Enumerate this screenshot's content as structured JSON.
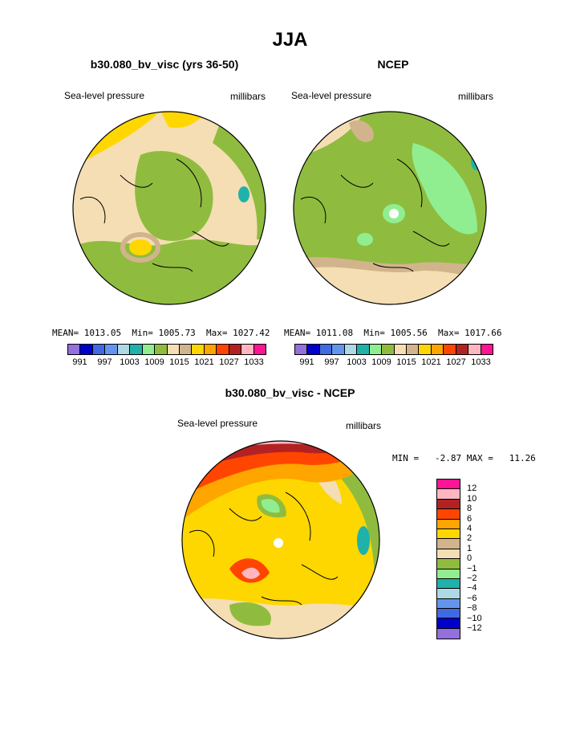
{
  "page_title": "JJA",
  "panels": [
    {
      "title": "b30.080_bv_visc (yrs 36-50)",
      "variable": "Sea-level pressure",
      "units": "millibars",
      "mean_label": "MEAN= 1013.05  Min= 1005.73  Max= 1027.42",
      "mean": 1013.05,
      "min": 1005.73,
      "max": 1027.42,
      "projection": "north-polar-stereographic"
    },
    {
      "title": "NCEP",
      "variable": "Sea-level pressure",
      "units": "millibars",
      "mean_label": "MEAN= 1011.08  Min= 1005.56  Max= 1017.66",
      "mean": 1011.08,
      "min": 1005.56,
      "max": 1017.66,
      "projection": "north-polar-stereographic"
    }
  ],
  "abs_colorbar": {
    "colors": [
      "#9370db",
      "#0000cd",
      "#4169e1",
      "#6495ed",
      "#add8e6",
      "#20b2aa",
      "#90ee90",
      "#8fbc3f",
      "#f5deb3",
      "#d2b48c",
      "#ffd700",
      "#ffa500",
      "#ff4500",
      "#b22222",
      "#ffb6c1",
      "#ff1493"
    ],
    "tick_labels": [
      "991",
      "997",
      "1003",
      "1009",
      "1015",
      "1021",
      "1027",
      "1033"
    ]
  },
  "diff_panel": {
    "title": "b30.080_bv_visc - NCEP",
    "variable": "Sea-level pressure",
    "units": "millibars",
    "minmax_label": "MIN =   -2.87 MAX =   11.26",
    "min": -2.87,
    "max": 11.26,
    "projection": "north-polar-stereographic"
  },
  "diff_colorbar": {
    "colors": [
      "#ff1493",
      "#ffb6c1",
      "#b22222",
      "#ff4500",
      "#ffa500",
      "#ffd700",
      "#d2b48c",
      "#f5deb3",
      "#8fbc3f",
      "#90ee90",
      "#20b2aa",
      "#add8e6",
      "#6495ed",
      "#4169e1",
      "#0000cd",
      "#9370db"
    ],
    "tick_labels": [
      "12",
      "10",
      "8",
      "6",
      "4",
      "2",
      "1",
      "0",
      "−1",
      "−2",
      "−4",
      "−6",
      "−8",
      "−10",
      "−12"
    ]
  }
}
